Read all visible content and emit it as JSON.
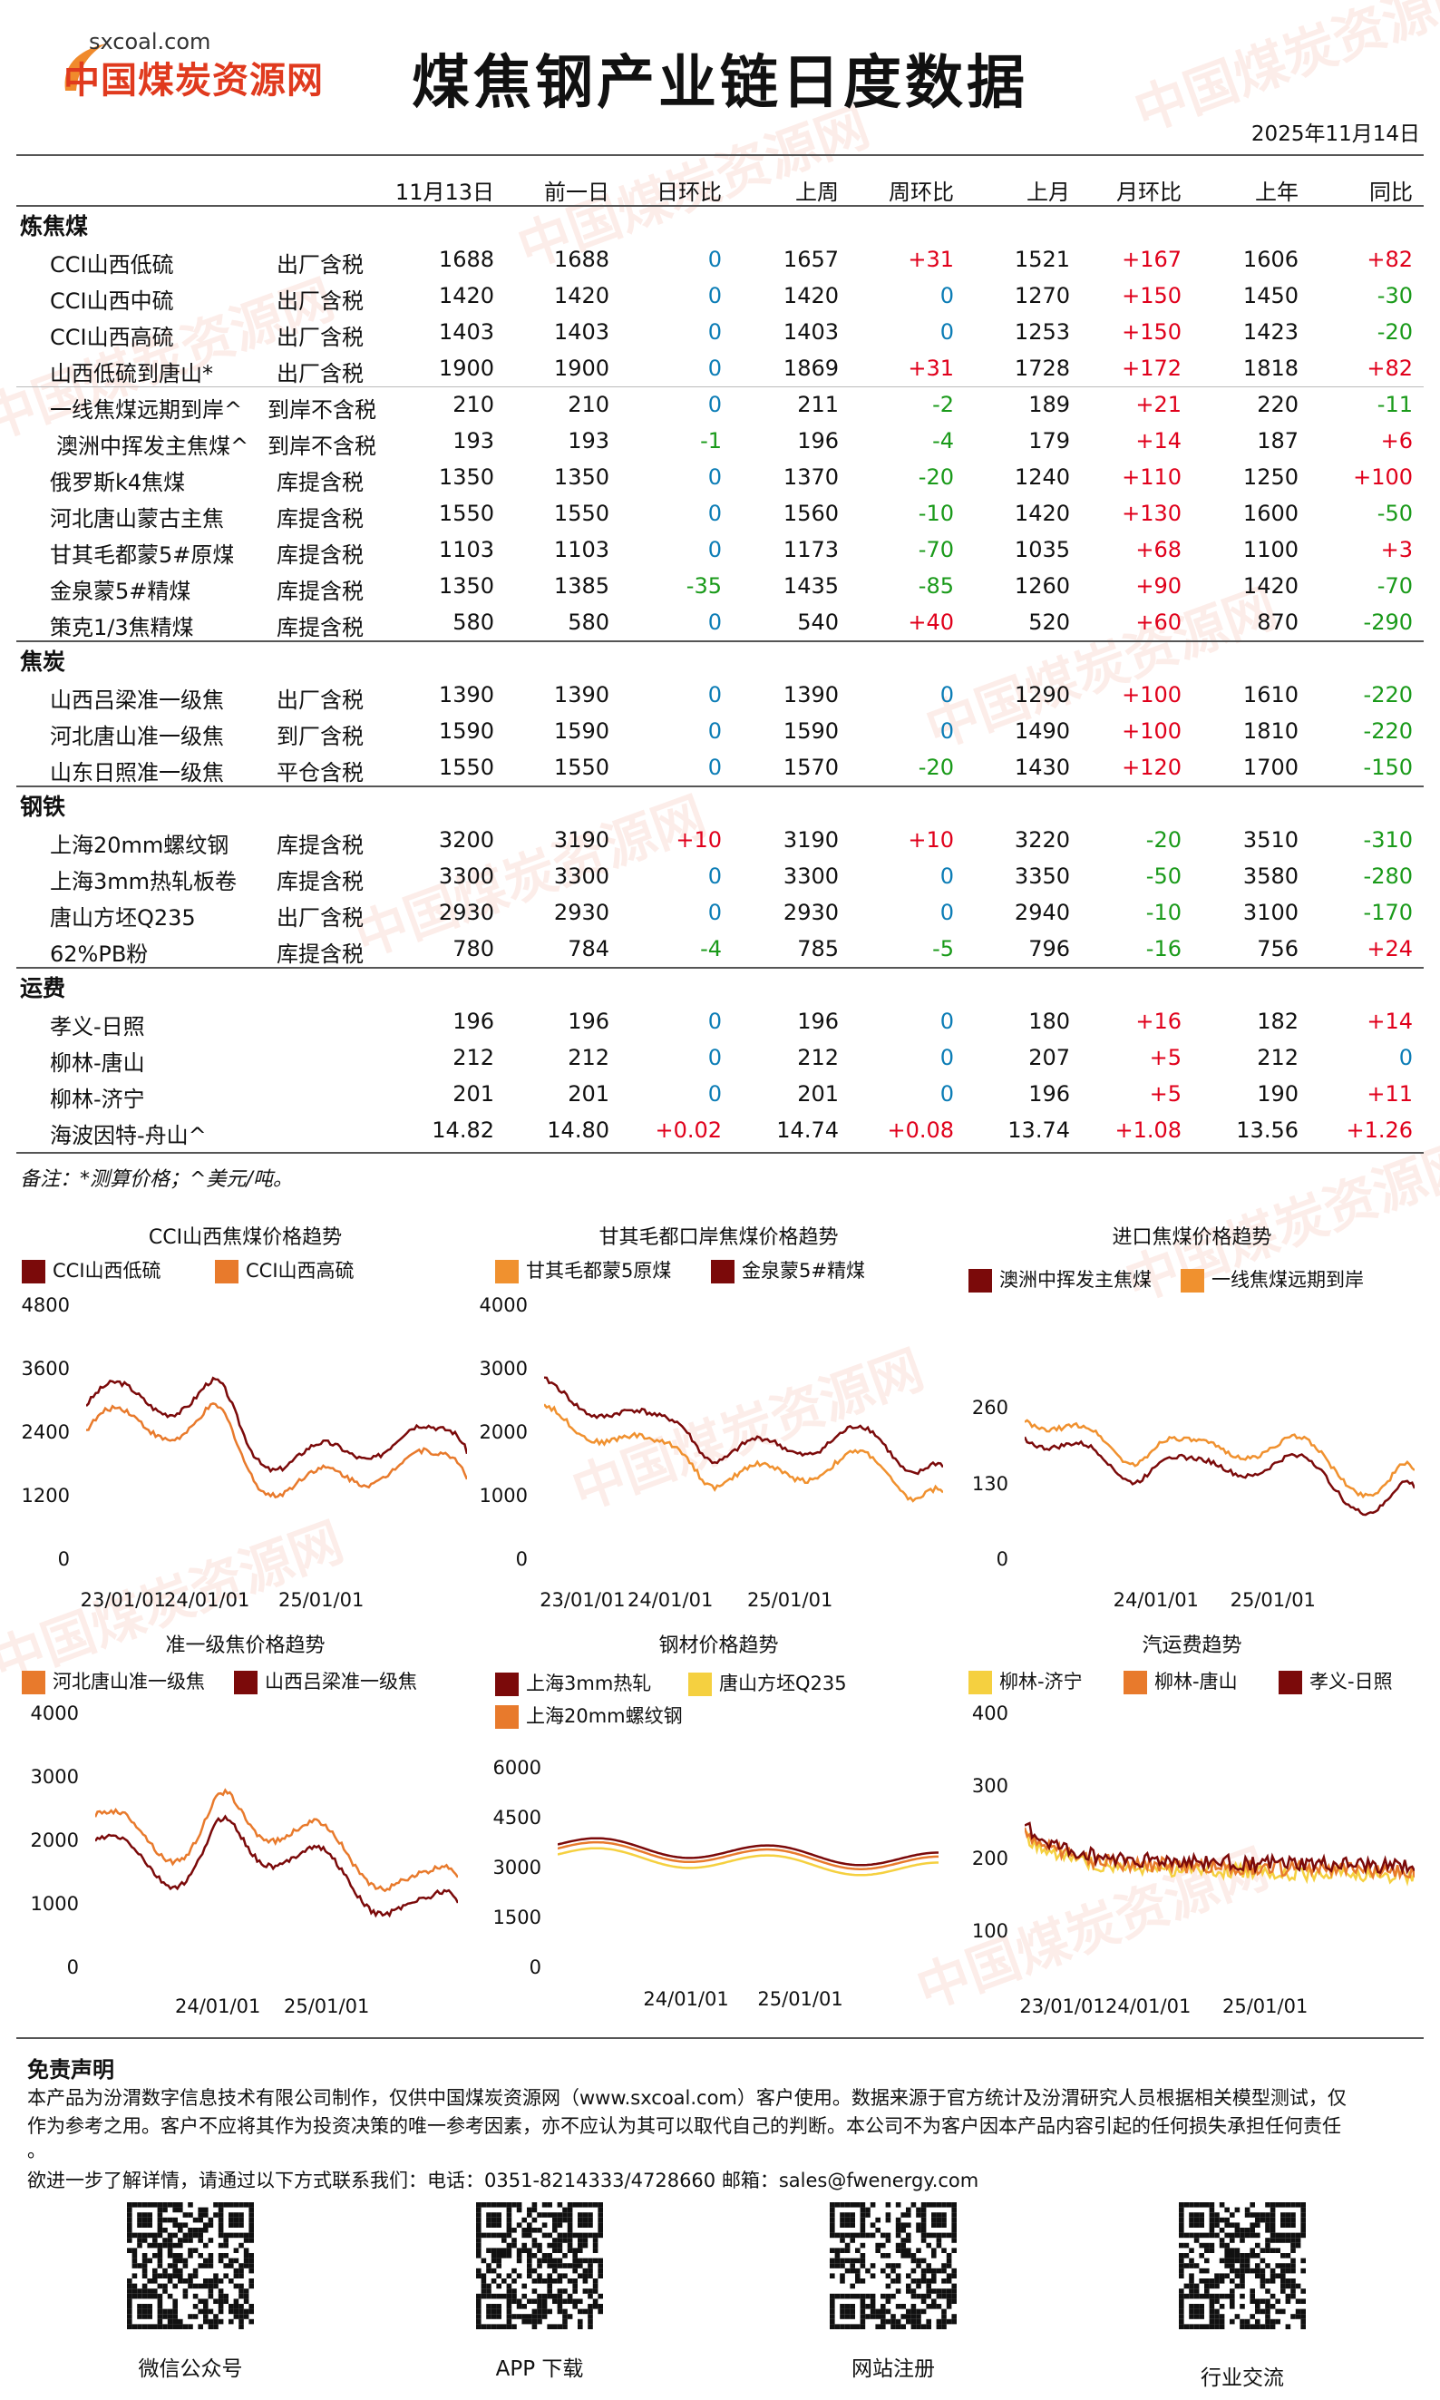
{
  "header": {
    "logo_url": "sxcoal.com",
    "logo_name": "中国煤炭资源网",
    "title": "煤焦钢产业链日度数据",
    "date": "2025年11月14日"
  },
  "watermark": "中国煤炭资源网",
  "table": {
    "columns": [
      "11月13日",
      "前一日",
      "日环比",
      "上周",
      "周环比",
      "上月",
      "月环比",
      "上年",
      "同比"
    ],
    "sections": [
      {
        "name": "炼焦煤",
        "rows": [
          {
            "name": "CCI山西低硫",
            "tax": "出厂含税",
            "v": [
              "1688",
              "1688",
              "0",
              "1657",
              "+31",
              "1521",
              "+167",
              "1606",
              "+82"
            ]
          },
          {
            "name": "CCI山西中硫",
            "tax": "出厂含税",
            "v": [
              "1420",
              "1420",
              "0",
              "1420",
              "0",
              "1270",
              "+150",
              "1450",
              "-30"
            ]
          },
          {
            "name": "CCI山西高硫",
            "tax": "出厂含税",
            "v": [
              "1403",
              "1403",
              "0",
              "1403",
              "0",
              "1253",
              "+150",
              "1423",
              "-20"
            ]
          },
          {
            "name": "山西低硫到唐山*",
            "tax": "出厂含税",
            "v": [
              "1900",
              "1900",
              "0",
              "1869",
              "+31",
              "1728",
              "+172",
              "1818",
              "+82"
            ]
          },
          {
            "name": "一线焦煤远期到岸^",
            "tax": "到岸不含税",
            "v": [
              "210",
              "210",
              "0",
              "211",
              "-2",
              "189",
              "+21",
              "220",
              "-11"
            ]
          },
          {
            "name": "澳洲中挥发主焦煤^",
            "tax": "到岸不含税",
            "v": [
              "193",
              "193",
              "-1",
              "196",
              "-4",
              "179",
              "+14",
              "187",
              "+6"
            ]
          },
          {
            "name": "俄罗斯k4焦煤",
            "tax": "库提含税",
            "v": [
              "1350",
              "1350",
              "0",
              "1370",
              "-20",
              "1240",
              "+110",
              "1250",
              "+100"
            ]
          },
          {
            "name": "河北唐山蒙古主焦",
            "tax": "库提含税",
            "v": [
              "1550",
              "1550",
              "0",
              "1560",
              "-10",
              "1420",
              "+130",
              "1600",
              "-50"
            ]
          },
          {
            "name": "甘其毛都蒙5#原煤",
            "tax": "库提含税",
            "v": [
              "1103",
              "1103",
              "0",
              "1173",
              "-70",
              "1035",
              "+68",
              "1100",
              "+3"
            ]
          },
          {
            "name": "金泉蒙5#精煤",
            "tax": "库提含税",
            "v": [
              "1350",
              "1385",
              "-35",
              "1435",
              "-85",
              "1260",
              "+90",
              "1420",
              "-70"
            ]
          },
          {
            "name": "策克1/3焦精煤",
            "tax": "库提含税",
            "v": [
              "580",
              "580",
              "0",
              "540",
              "+40",
              "520",
              "+60",
              "870",
              "-290"
            ]
          }
        ]
      },
      {
        "name": "焦炭",
        "rows": [
          {
            "name": "山西吕梁准一级焦",
            "tax": "出厂含税",
            "v": [
              "1390",
              "1390",
              "0",
              "1390",
              "0",
              "1290",
              "+100",
              "1610",
              "-220"
            ]
          },
          {
            "name": "河北唐山准一级焦",
            "tax": "到厂含税",
            "v": [
              "1590",
              "1590",
              "0",
              "1590",
              "0",
              "1490",
              "+100",
              "1810",
              "-220"
            ]
          },
          {
            "name": "山东日照准一级焦",
            "tax": "平仓含税",
            "v": [
              "1550",
              "1550",
              "0",
              "1570",
              "-20",
              "1430",
              "+120",
              "1700",
              "-150"
            ]
          }
        ]
      },
      {
        "name": "钢铁",
        "rows": [
          {
            "name": "上海20mm螺纹钢",
            "tax": "库提含税",
            "v": [
              "3200",
              "3190",
              "+10",
              "3190",
              "+10",
              "3220",
              "-20",
              "3510",
              "-310"
            ]
          },
          {
            "name": "上海3mm热轧板卷",
            "tax": "库提含税",
            "v": [
              "3300",
              "3300",
              "0",
              "3300",
              "0",
              "3350",
              "-50",
              "3580",
              "-280"
            ]
          },
          {
            "name": "唐山方坯Q235",
            "tax": "出厂含税",
            "v": [
              "2930",
              "2930",
              "0",
              "2930",
              "0",
              "2940",
              "-10",
              "3100",
              "-170"
            ]
          },
          {
            "name": "62%PB粉",
            "tax": "库提含税",
            "v": [
              "780",
              "784",
              "-4",
              "785",
              "-5",
              "796",
              "-16",
              "756",
              "+24"
            ]
          }
        ]
      },
      {
        "name": "运费",
        "rows": [
          {
            "name": "孝义-日照",
            "tax": "",
            "v": [
              "196",
              "196",
              "0",
              "196",
              "0",
              "180",
              "+16",
              "182",
              "+14"
            ]
          },
          {
            "name": "柳林-唐山",
            "tax": "",
            "v": [
              "212",
              "212",
              "0",
              "212",
              "0",
              "207",
              "+5",
              "212",
              "0"
            ]
          },
          {
            "name": "柳林-济宁",
            "tax": "",
            "v": [
              "201",
              "201",
              "0",
              "201",
              "0",
              "196",
              "+5",
              "190",
              "+11"
            ]
          },
          {
            "name": "海波因特-舟山^",
            "tax": "",
            "v": [
              "14.82",
              "14.80",
              "+0.02",
              "14.74",
              "+0.08",
              "13.74",
              "+1.08",
              "13.56",
              "+1.26"
            ]
          }
        ]
      }
    ],
    "note": "备注：*测算价格；^美元/吨。"
  },
  "charts": [
    {
      "title": "CCI山西焦煤价格趋势",
      "series": [
        {
          "name": "CCI山西低硫",
          "color": "#7b0a0a"
        },
        {
          "name": "CCI山西高硫",
          "color": "#e87a2c"
        }
      ],
      "yticks": [
        "4800",
        "3600",
        "2400",
        "1200",
        "0"
      ],
      "ymax": 4800,
      "xticks": [
        "23/01/01",
        "24/01/01",
        "25/01/01"
      ]
    },
    {
      "title": "甘其毛都口岸焦煤价格趋势",
      "series": [
        {
          "name": "甘其毛都蒙5原煤",
          "color": "#f0912f"
        },
        {
          "name": "金泉蒙5#精煤",
          "color": "#7b0a0a"
        }
      ],
      "yticks": [
        "4000",
        "3000",
        "2000",
        "1000",
        "0"
      ],
      "ymax": 4000,
      "xticks": [
        "23/01/01",
        "24/01/01",
        "25/01/01"
      ]
    },
    {
      "title": "进口焦煤价格趋势",
      "series": [
        {
          "name": "澳洲中挥发主焦煤",
          "color": "#7b0a0a"
        },
        {
          "name": "一线焦煤远期到岸",
          "color": "#f0912f"
        }
      ],
      "yticks": [
        "260",
        "130",
        "0"
      ],
      "ymax": 390,
      "xticks": [
        "24/01/01",
        "25/01/01"
      ]
    },
    {
      "title": "准一级焦价格趋势",
      "series": [
        {
          "name": "河北唐山准一级焦",
          "color": "#e87a2c"
        },
        {
          "name": "山西吕梁准一级焦",
          "color": "#7b0a0a"
        }
      ],
      "yticks": [
        "4000",
        "3000",
        "2000",
        "1000",
        "0"
      ],
      "ymax": 4000,
      "xticks": [
        "24/01/01",
        "25/01/01"
      ]
    },
    {
      "title": "钢材价格趋势",
      "series": [
        {
          "name": "上海3mm热轧",
          "color": "#7b0a0a"
        },
        {
          "name": "唐山方坯Q235",
          "color": "#f5d040"
        },
        {
          "name": "上海20mm螺纹钢",
          "color": "#e87a2c"
        }
      ],
      "yticks": [
        "6000",
        "4500",
        "3000",
        "1500",
        "0"
      ],
      "ymax": 6000,
      "xticks": [
        "24/01/01",
        "25/01/01"
      ]
    },
    {
      "title": "汽运费趋势",
      "series": [
        {
          "name": "柳林-济宁",
          "color": "#f5d040"
        },
        {
          "name": "柳林-唐山",
          "color": "#e87a2c"
        },
        {
          "name": "孝义-日照",
          "color": "#7b0a0a"
        }
      ],
      "yticks": [
        "400",
        "300",
        "200",
        "100"
      ],
      "ymax": 400,
      "ymin": 100,
      "xticks": [
        "23/01/01",
        "24/01/01",
        "25/01/01"
      ]
    }
  ],
  "footer": {
    "disclaimer_title": "免责声明",
    "disclaimer_line1": "本产品为汾渭数字信息技术有限公司制作，仅供中国煤炭资源网（www.sxcoal.com）客户使用。数据来源于官方统计及汾渭研究人员根据相关模型测试，仅",
    "disclaimer_line2": "作为参考之用。客户不应将其作为投资决策的唯一参考因素，亦不应认为其可以取代自己的判断。本公司不为客户因本产品内容引起的任何损失承担任何责任",
    "disclaimer_line3": "。",
    "contact": "欲进一步了解详情，请通过以下方式联系我们：电话：0351-8214333/4728660 邮箱：sales@fwenergy.com",
    "qr": [
      "微信公众号",
      "APP 下载",
      "网站注册",
      "行业交流"
    ]
  }
}
